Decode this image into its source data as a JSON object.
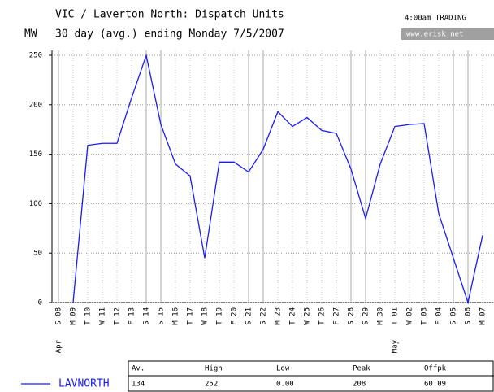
{
  "chart_data": {
    "type": "line",
    "title": "VIC / Laverton North: Dispatch Units",
    "subtitle": "30 day (avg.) ending Monday 7/5/2007",
    "y_label": "MW",
    "status": "4:00am TRADING",
    "source": "www.erisk.net",
    "categories": [
      "S 08",
      "M 09",
      "T 10",
      "W 11",
      "T 12",
      "F 13",
      "S 14",
      "S 15",
      "M 16",
      "T 17",
      "W 18",
      "T 19",
      "F 20",
      "S 21",
      "S 22",
      "M 23",
      "T 24",
      "W 25",
      "T 26",
      "F 27",
      "S 28",
      "S 29",
      "M 30",
      "T 01",
      "W 02",
      "T 03",
      "F 04",
      "S 05",
      "S 06",
      "M 07"
    ],
    "months": [
      "Apr",
      "May"
    ],
    "series": [
      {
        "name": "LAVNORTH",
        "color": "#1a1aff",
        "values": [
          null,
          0,
          159,
          161,
          161,
          207,
          250,
          180,
          140,
          128,
          45,
          142,
          142,
          132,
          155,
          193,
          178,
          187,
          174,
          171,
          135,
          85,
          140,
          178,
          180,
          181,
          90,
          45,
          0,
          68
        ]
      }
    ],
    "ylim": [
      0,
      250
    ],
    "yticks": [
      0,
      50,
      100,
      150,
      200,
      250
    ],
    "grid": true,
    "table": {
      "headers": [
        "Av.",
        "High",
        "Low",
        "Peak",
        "Offpk"
      ],
      "rows": [
        [
          "134",
          "252",
          "0.00",
          "208",
          "60.09"
        ]
      ]
    }
  }
}
